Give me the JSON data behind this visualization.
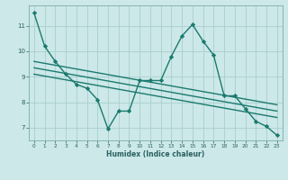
{
  "xlabel": "Humidex (Indice chaleur)",
  "ylabel": "",
  "bg_color": "#cce8e8",
  "grid_color": "#aacece",
  "line_color": "#1a7a6e",
  "tick_color": "#2a6060",
  "xlim": [
    -0.5,
    23.5
  ],
  "ylim": [
    6.5,
    11.8
  ],
  "xticks": [
    0,
    1,
    2,
    3,
    4,
    5,
    6,
    7,
    8,
    9,
    10,
    11,
    12,
    13,
    14,
    15,
    16,
    17,
    18,
    19,
    20,
    21,
    22,
    23
  ],
  "yticks": [
    7,
    8,
    9,
    10,
    11
  ],
  "series": [
    {
      "x": [
        0,
        1,
        2,
        3,
        4,
        5,
        6,
        7,
        8,
        9,
        10,
        11,
        12,
        13,
        14,
        15,
        16,
        17,
        18,
        19,
        20,
        21,
        22,
        23
      ],
      "y": [
        11.5,
        10.2,
        9.6,
        9.1,
        8.7,
        8.55,
        8.1,
        6.95,
        7.65,
        7.65,
        8.85,
        8.85,
        8.85,
        9.8,
        10.6,
        11.05,
        10.4,
        9.85,
        8.25,
        8.25,
        7.75,
        7.25,
        7.05,
        6.7
      ],
      "marker": "D",
      "markersize": 2.2,
      "linewidth": 1.0
    },
    {
      "x": [
        0,
        23
      ],
      "y": [
        9.6,
        7.9
      ],
      "marker": null,
      "linewidth": 1.0
    },
    {
      "x": [
        0,
        23
      ],
      "y": [
        9.35,
        7.65
      ],
      "marker": null,
      "linewidth": 1.0
    },
    {
      "x": [
        0,
        23
      ],
      "y": [
        9.1,
        7.4
      ],
      "marker": null,
      "linewidth": 1.0
    }
  ]
}
